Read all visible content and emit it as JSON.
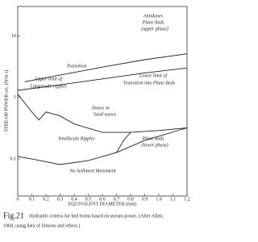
{
  "chart_data": {
    "type": "line",
    "y_label": "STREAM POWER ωτ₀ (N/m s)",
    "x_label": "EQUIVALENT DIAMETER (mm)",
    "figure_label": "Fig.21",
    "caption": [
      "Hydraulic criteria for bed forms based on stream power. (After Allen,",
      "1968, using data of Simons and others.)"
    ],
    "log_y": true,
    "xlim": [
      0,
      1.2
    ],
    "xticks": [
      0,
      0.1,
      0.2,
      0.3,
      0.4,
      0.5,
      0.6,
      0.7,
      0.8,
      0.9,
      {
        "value": 1,
        "label": "1.0"
      },
      1.1,
      1.2
    ],
    "ylim": [
      0.025,
      30
    ],
    "yticks": [
      0.1,
      1,
      10
    ],
    "series": [
      {
        "color": "#222",
        "x": [
          0.05,
          0.3,
          0.6,
          0.9,
          1.2
        ],
        "values": [
          1.8,
          2.3,
          3.1,
          4.1,
          5.1
        ]
      },
      {
        "color": "#222",
        "x": [
          0,
          0.3,
          0.6,
          0.9,
          1.2
        ],
        "values": [
          1.3,
          1.6,
          2.0,
          2.5,
          3.0
        ]
      },
      {
        "color": "#222",
        "x": [
          0,
          0.1,
          0.15,
          0.2,
          0.3,
          0.4,
          0.6,
          0.8,
          1.0,
          1.2
        ],
        "values": [
          1.13,
          0.58,
          0.43,
          0.58,
          0.5,
          0.37,
          0.27,
          0.27,
          0.29,
          0.32
        ]
      },
      {
        "color": "#222",
        "x": [
          0,
          0.1,
          0.3,
          0.5,
          0.7,
          0.9,
          1.2
        ],
        "values": [
          0.11,
          0.1,
          0.081,
          0.094,
          0.127,
          0.2,
          0.32
        ]
      },
      {
        "color": "#222",
        "x": [
          0.7,
          0.75,
          0.8
        ],
        "values": [
          0.127,
          0.2,
          0.27
        ]
      }
    ],
    "annotations": [
      "Antidunes",
      "Plane Beds",
      "(upper phase)",
      "Transition",
      "Upper limit of",
      "Largescale ripples",
      "Lower limit of",
      "Transition into Plane Beds",
      "Dunes or",
      "Sand waves",
      "Smallscale Ripples",
      "Plane Beds",
      "(lower phase)",
      "No Sediment Movement"
    ]
  }
}
